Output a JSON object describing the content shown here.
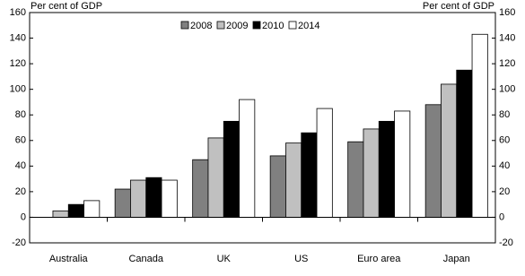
{
  "chart_data": {
    "type": "bar",
    "y_label_left": "Per cent of GDP",
    "y_label_right": "Per cent of GDP",
    "categories": [
      "Australia",
      "Canada",
      "UK",
      "US",
      "Euro area",
      "Japan"
    ],
    "series": [
      {
        "name": "2008",
        "color": "#808080",
        "values": [
          0,
          22,
          45,
          48,
          59,
          88
        ]
      },
      {
        "name": "2009",
        "color": "#c0c0c0",
        "values": [
          5,
          29,
          62,
          58,
          69,
          104
        ]
      },
      {
        "name": "2010",
        "color": "#000000",
        "values": [
          10,
          31,
          75,
          66,
          75,
          115
        ]
      },
      {
        "name": "2014",
        "color": "#ffffff",
        "values": [
          13,
          29,
          92,
          85,
          83,
          143
        ]
      }
    ],
    "ylim": [
      -20,
      160
    ],
    "yticks": [
      -20,
      0,
      20,
      40,
      60,
      80,
      100,
      120,
      140,
      160
    ],
    "legend": "top"
  }
}
